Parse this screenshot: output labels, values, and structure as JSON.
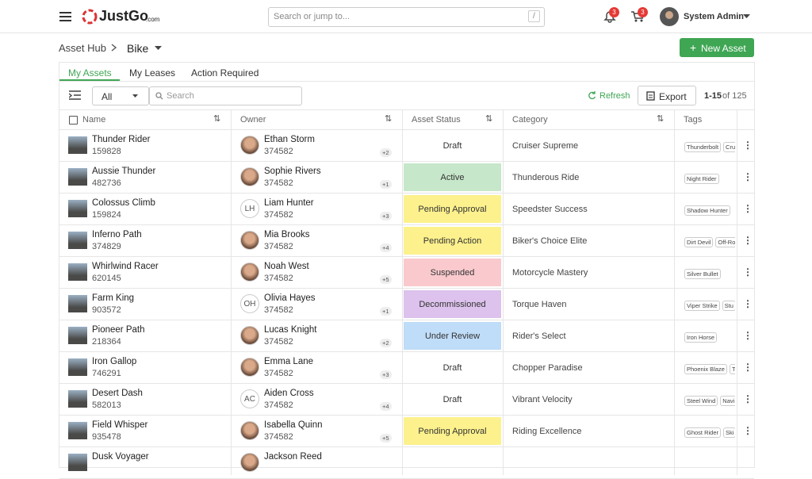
{
  "header": {
    "logo": "JustGo",
    "logo_suffix": ".com",
    "search_placeholder": "Search or jump to...",
    "search_shortcut": "/",
    "notifications_badge": "3",
    "cart_badge": "3",
    "user_name": "System Admin"
  },
  "breadcrumb": [
    "Asset Hub",
    "Bike"
  ],
  "new_button": "New Asset",
  "tabs": [
    "My Assets",
    "My Leases",
    "Action Required"
  ],
  "toolbar": {
    "filter": "All",
    "search_placeholder": "Search",
    "refresh": "Refresh",
    "export": "Export",
    "range": "1-15",
    "total": "of 125"
  },
  "table": {
    "columns": [
      "Name",
      "Owner",
      "Asset Status",
      "Category",
      "Tags"
    ],
    "rows": [
      {
        "name": "Thunder Rider",
        "id": "159828",
        "owner": "Ethan Storm",
        "owner_id": "374582",
        "extra": "+2",
        "status": "Draft",
        "status_color": "#ffffff",
        "category": "Cruiser Supreme",
        "tags": [
          "Thunderbolt",
          "Cru"
        ]
      },
      {
        "name": "Aussie Thunder",
        "id": "482736",
        "owner": "Sophie Rivers",
        "owner_id": "374582",
        "extra": "+1",
        "status": "Active",
        "status_color": "#c6e7c9",
        "category": "Thunderous Ride",
        "tags": [
          "Night Rider"
        ]
      },
      {
        "name": "Colossus Climb",
        "id": "159824",
        "owner": "Liam Hunter",
        "initials": "LH",
        "owner_id": "374582",
        "extra": "+3",
        "status": "Pending Approval",
        "status_color": "#fdf18d",
        "category": "Speedster Success",
        "tags": [
          "Shadow Hunter"
        ]
      },
      {
        "name": "Inferno Path",
        "id": "374829",
        "owner": "Mia Brooks",
        "owner_id": "374582",
        "extra": "+4",
        "status": "Pending Action",
        "status_color": "#fdf18d",
        "category": "Biker's Choice Elite",
        "tags": [
          "Dirt Devil",
          "Off-Ro"
        ]
      },
      {
        "name": "Whirlwind Racer",
        "id": "620145",
        "owner": "Noah West",
        "owner_id": "374582",
        "extra": "+5",
        "status": "Suspended",
        "status_color": "#f9c9cd",
        "category": "Motorcycle Mastery",
        "tags": [
          "Silver Bullet"
        ]
      },
      {
        "name": "Farm King",
        "id": "903572",
        "owner": "Olivia Hayes",
        "initials": "OH",
        "owner_id": "374582",
        "extra": "+1",
        "status": "Decommissioned",
        "status_color": "#dcc2ec",
        "category": "Torque Haven",
        "tags": [
          "Viper Strike",
          "Stu"
        ]
      },
      {
        "name": "Pioneer Path",
        "id": "218364",
        "owner": "Lucas Knight",
        "owner_id": "374582",
        "extra": "+2",
        "status": "Under Review",
        "status_color": "#bfdcf8",
        "category": "Rider's Select",
        "tags": [
          "Iron Horse"
        ]
      },
      {
        "name": "Iron Gallop",
        "id": "746291",
        "owner": "Emma Lane",
        "owner_id": "374582",
        "extra": "+3",
        "status": "Draft",
        "status_color": "#ffffff",
        "category": "Chopper Paradise",
        "tags": [
          "Phoenix Blaze",
          "T"
        ]
      },
      {
        "name": "Desert Dash",
        "id": "582013",
        "owner": "Aiden Cross",
        "initials": "AC",
        "owner_id": "374582",
        "extra": "+4",
        "status": "Draft",
        "status_color": "#ffffff",
        "category": "Vibrant Velocity",
        "tags": [
          "Steel Wind",
          "Navi"
        ]
      },
      {
        "name": "Field Whisper",
        "id": "935478",
        "owner": "Isabella Quinn",
        "owner_id": "374582",
        "extra": "+5",
        "status": "Pending Approval",
        "status_color": "#fdf18d",
        "category": "Riding Excellence",
        "tags": [
          "Ghost Rider",
          "Ski"
        ]
      },
      {
        "name": "Dusk Voyager",
        "owner": "Jackson Reed"
      }
    ]
  }
}
